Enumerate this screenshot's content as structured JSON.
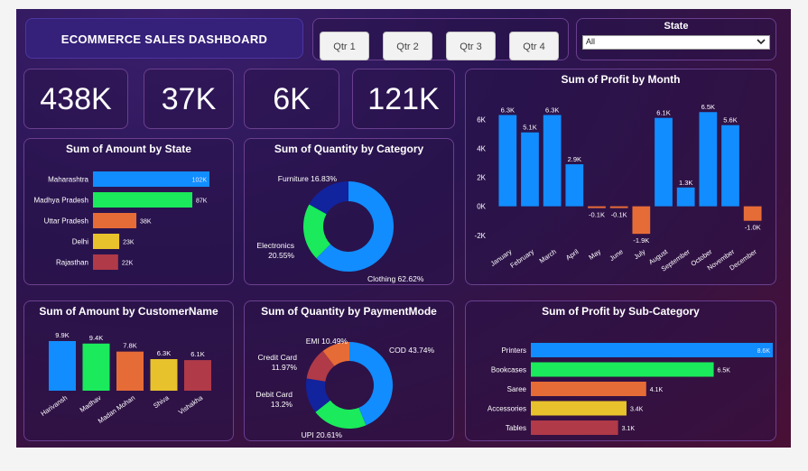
{
  "header": {
    "title": "ECOMMERCE  SALES DASHBOARD"
  },
  "quarters": [
    "Qtr 1",
    "Qtr 2",
    "Qtr 3",
    "Qtr 4"
  ],
  "state_filter": {
    "label": "State",
    "selected": "All"
  },
  "kpis": [
    "438K",
    "37K",
    "6K",
    "121K"
  ],
  "colors": {
    "blue": "#118dff",
    "green": "#1aea5b",
    "orange": "#e66c37",
    "yellow": "#e8c22c",
    "red": "#b03a48",
    "navy": "#12239e",
    "white": "#ffffff"
  },
  "chart_data": [
    {
      "id": "amount_by_state",
      "type": "bar",
      "orientation": "horizontal",
      "title": "Sum of Amount by State",
      "categories": [
        "Maharashtra",
        "Madhya Pradesh",
        "Uttar Pradesh",
        "Delhi",
        "Rajasthan"
      ],
      "values": [
        102,
        87,
        38,
        23,
        22
      ],
      "labels": [
        "102K",
        "87K",
        "38K",
        "23K",
        "22K"
      ],
      "colors": [
        "#118dff",
        "#1aea5b",
        "#e66c37",
        "#e8c22c",
        "#b03a48"
      ],
      "xlim": [
        0,
        102
      ]
    },
    {
      "id": "quantity_by_category",
      "type": "pie",
      "donut": true,
      "title": "Sum of Quantity by Category",
      "categories": [
        "Clothing",
        "Electronics",
        "Furniture"
      ],
      "values": [
        62.62,
        20.55,
        16.83
      ],
      "labels": [
        "Clothing 62.62%",
        "Electronics",
        "Furniture 16.83%"
      ],
      "sublabels": [
        "",
        "20.55%",
        ""
      ],
      "colors": [
        "#118dff",
        "#1aea5b",
        "#12239e"
      ]
    },
    {
      "id": "profit_by_month",
      "type": "bar",
      "title": "Sum of Profit by Month",
      "categories": [
        "January",
        "February",
        "March",
        "April",
        "May",
        "June",
        "July",
        "August",
        "September",
        "October",
        "November",
        "December"
      ],
      "values": [
        6.3,
        5.1,
        6.3,
        2.9,
        -0.1,
        -0.1,
        -1.9,
        6.1,
        1.3,
        6.5,
        5.6,
        -1.0
      ],
      "labels": [
        "6.3K",
        "5.1K",
        "6.3K",
        "2.9K",
        "-0.1K",
        "-0.1K",
        "-1.9K",
        "6.1K",
        "1.3K",
        "6.5K",
        "5.6K",
        "-1.0K"
      ],
      "positive_color": "#118dff",
      "negative_color": "#e66c37",
      "yticks": [
        6,
        4,
        2,
        0,
        -2
      ],
      "ytick_labels": [
        "6K",
        "4K",
        "2K",
        "0K",
        "-2K"
      ],
      "ylim": [
        -2.7,
        7.2
      ]
    },
    {
      "id": "amount_by_customer",
      "type": "bar",
      "title": "Sum of Amount by CustomerName",
      "categories": [
        "Harivansh",
        "Madhav",
        "Madan Mohan",
        "Shiva",
        "Vishakha"
      ],
      "values": [
        9.9,
        9.4,
        7.8,
        6.3,
        6.1
      ],
      "labels": [
        "9.9K",
        "9.4K",
        "7.8K",
        "6.3K",
        "6.1K"
      ],
      "colors": [
        "#118dff",
        "#1aea5b",
        "#e66c37",
        "#e8c22c",
        "#b03a48"
      ],
      "ylim": [
        0,
        9.9
      ]
    },
    {
      "id": "quantity_by_paymentmode",
      "type": "pie",
      "donut": true,
      "title": "Sum of Quantity by PaymentMode",
      "categories": [
        "COD",
        "UPI",
        "Debit Card",
        "Credit Card",
        "EMI"
      ],
      "values": [
        43.74,
        20.61,
        13.2,
        11.97,
        10.49
      ],
      "labels": [
        "COD 43.74%",
        "UPI 20.61%",
        "Debit Card",
        "Credit Card",
        "EMI 10.49%"
      ],
      "sublabels": [
        "",
        "",
        "13.2%",
        "11.97%",
        ""
      ],
      "colors": [
        "#118dff",
        "#1aea5b",
        "#12239e",
        "#b03a48",
        "#e66c37"
      ]
    },
    {
      "id": "profit_by_subcategory",
      "type": "bar",
      "orientation": "horizontal",
      "title": "Sum of Profit by Sub-Category",
      "categories": [
        "Printers",
        "Bookcases",
        "Saree",
        "Accessories",
        "Tables"
      ],
      "values": [
        8.6,
        6.5,
        4.1,
        3.4,
        3.1
      ],
      "labels": [
        "8.6K",
        "6.5K",
        "4.1K",
        "3.4K",
        "3.1K"
      ],
      "colors": [
        "#118dff",
        "#1aea5b",
        "#e66c37",
        "#e8c22c",
        "#b03a48"
      ],
      "xlim": [
        0,
        8.6
      ]
    }
  ]
}
